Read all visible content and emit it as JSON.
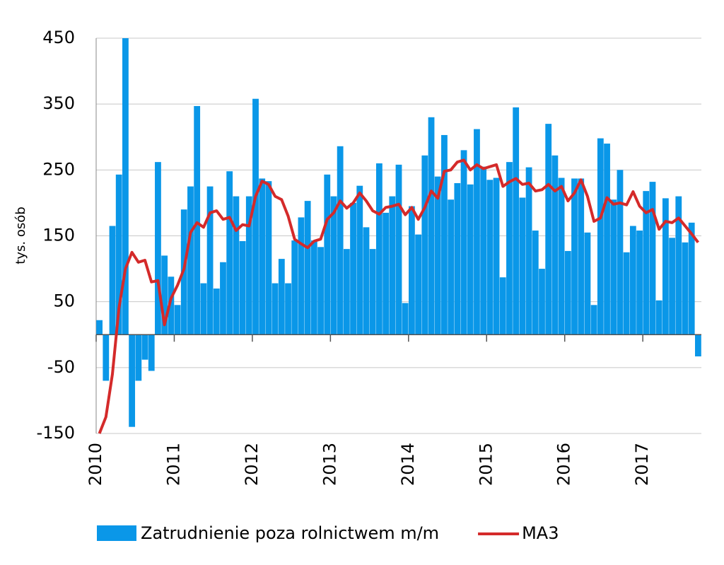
{
  "chart_data": {
    "type": "bar",
    "y_label": "tys. osób",
    "categories": [
      "2010",
      null,
      null,
      null,
      null,
      null,
      null,
      null,
      null,
      null,
      null,
      null,
      "2011",
      null,
      null,
      null,
      null,
      null,
      null,
      null,
      null,
      null,
      null,
      null,
      "2012",
      null,
      null,
      null,
      null,
      null,
      null,
      null,
      null,
      null,
      null,
      null,
      "2013",
      null,
      null,
      null,
      null,
      null,
      null,
      null,
      null,
      null,
      null,
      null,
      "2014",
      null,
      null,
      null,
      null,
      null,
      null,
      null,
      null,
      null,
      null,
      null,
      "2015",
      null,
      null,
      null,
      null,
      null,
      null,
      null,
      null,
      null,
      null,
      null,
      "2016",
      null,
      null,
      null,
      null,
      null,
      null,
      null,
      null,
      null,
      null,
      null,
      "2017",
      null,
      null,
      null,
      null,
      null,
      null,
      null,
      null
    ],
    "series": [
      {
        "name": "Zatrudnienie poza rolnictwem m/m",
        "type": "bar",
        "color": "#0a97e8",
        "values": [
          22,
          -70,
          165,
          243,
          450,
          -140,
          -70,
          -38,
          -55,
          262,
          120,
          88,
          45,
          190,
          225,
          347,
          78,
          225,
          70,
          110,
          248,
          210,
          142,
          210,
          358,
          237,
          233,
          78,
          115,
          78,
          143,
          178,
          203,
          143,
          133,
          243,
          210,
          286,
          130,
          200,
          226,
          163,
          130,
          260,
          185,
          210,
          258,
          48,
          195,
          152,
          272,
          330,
          240,
          303,
          205,
          230,
          280,
          228,
          312,
          255,
          235,
          238,
          87,
          262,
          345,
          208,
          254,
          158,
          100,
          320,
          272,
          238,
          127,
          237,
          237,
          155,
          45,
          298,
          290,
          205,
          250,
          125,
          165,
          158,
          218,
          232,
          52,
          207,
          147,
          210,
          140,
          170,
          -33
        ]
      },
      {
        "name": "MA3",
        "type": "line",
        "color": "#d42a2a",
        "values": [
          -150,
          -125,
          -60,
          40,
          100,
          125,
          110,
          113,
          80,
          82,
          15,
          55,
          75,
          100,
          155,
          170,
          163,
          185,
          188,
          175,
          178,
          158,
          167,
          165,
          210,
          233,
          228,
          210,
          205,
          180,
          145,
          138,
          132,
          142,
          145,
          175,
          185,
          203,
          192,
          200,
          215,
          203,
          188,
          183,
          193,
          195,
          198,
          182,
          193,
          175,
          193,
          218,
          207,
          248,
          250,
          262,
          265,
          250,
          258,
          252,
          255,
          258,
          225,
          232,
          237,
          228,
          230,
          218,
          220,
          228,
          218,
          225,
          203,
          215,
          235,
          210,
          172,
          177,
          208,
          198,
          200,
          197,
          217,
          195,
          185,
          190,
          160,
          172,
          170,
          177,
          165,
          153,
          140
        ]
      }
    ],
    "ylim": [
      -150,
      450
    ],
    "yticks": [
      -150,
      -50,
      50,
      150,
      250,
      350,
      450
    ],
    "grid": true,
    "legend": "bottom"
  }
}
